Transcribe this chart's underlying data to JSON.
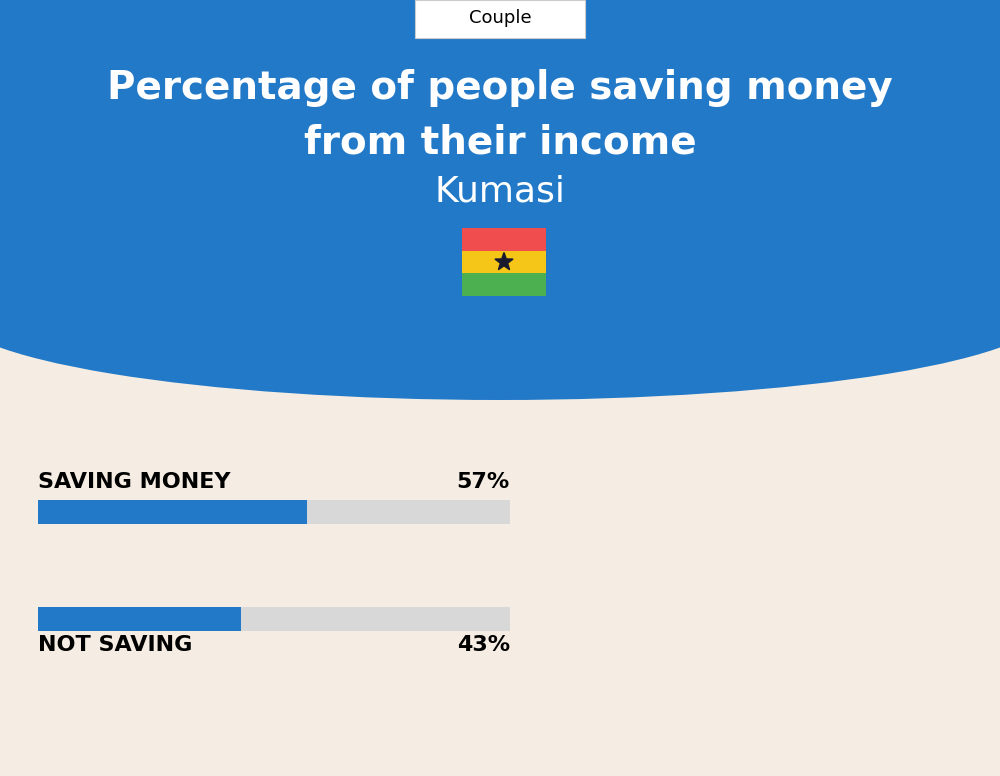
{
  "title_line1": "Percentage of people saving money",
  "title_line2": "from their income",
  "subtitle": "Kumasi",
  "tab_label": "Couple",
  "bg_top_color": "#2279C8",
  "bg_bottom_color": "#F5EDE3",
  "bar_blue": "#2279C8",
  "bar_gray": "#D8D8D8",
  "bar1_label": "SAVING MONEY",
  "bar1_value": 57,
  "bar1_pct": "57%",
  "bar2_label": "NOT SAVING",
  "bar2_value": 43,
  "bar2_pct": "43%",
  "bar_max": 100,
  "label_fontsize": 16,
  "pct_fontsize": 16,
  "title_fontsize": 28,
  "subtitle_fontsize": 26,
  "tab_fontsize": 13,
  "flag_red": "#F04E4E",
  "flag_yellow": "#F5C518",
  "flag_green": "#4CAF50",
  "flag_star": "#1A1A2E"
}
